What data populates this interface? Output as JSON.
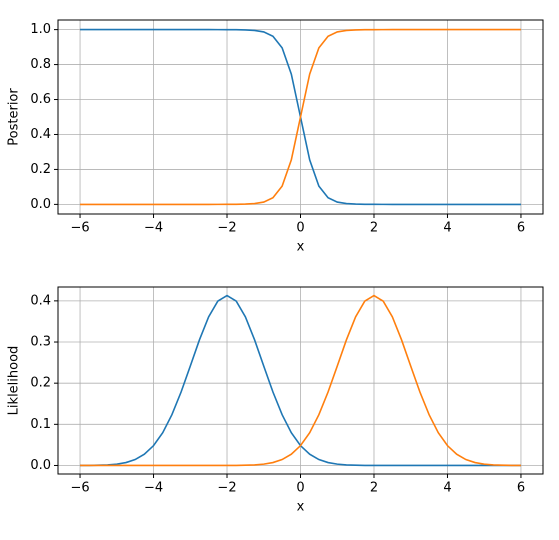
{
  "chart_data": [
    {
      "type": "line",
      "xlabel": "x",
      "ylabel": "Posterior",
      "x": [
        -6,
        -5.75,
        -5.5,
        -5.25,
        -5,
        -4.75,
        -4.5,
        -4.25,
        -4,
        -3.75,
        -3.5,
        -3.25,
        -3,
        -2.75,
        -2.5,
        -2.25,
        -2,
        -1.75,
        -1.5,
        -1.25,
        -1,
        -0.75,
        -0.5,
        -0.25,
        0,
        0.25,
        0.5,
        0.75,
        1,
        1.25,
        1.5,
        1.75,
        2,
        2.25,
        2.5,
        2.75,
        3,
        3.25,
        3.5,
        3.75,
        4,
        4.25,
        4.5,
        4.75,
        5,
        5.25,
        5.5,
        5.75,
        6
      ],
      "series": [
        {
          "color": "#1f77b4",
          "values": [
            1,
            1,
            1,
            1,
            1,
            1,
            1,
            1,
            1,
            1,
            1,
            1,
            1,
            1,
            1,
            0.9999,
            0.9998,
            0.9995,
            0.9984,
            0.9954,
            0.9866,
            0.9618,
            0.8957,
            0.7456,
            0.5,
            0.2544,
            0.1043,
            0.0382,
            0.0134,
            0.0046,
            0.0016,
            0.0005,
            0.0002,
            0.0001,
            0,
            0,
            0,
            0,
            0,
            0,
            0,
            0,
            0,
            0,
            0,
            0,
            0,
            0,
            0
          ]
        },
        {
          "color": "#ff7f0e",
          "values": [
            0,
            0,
            0,
            0,
            0,
            0,
            0,
            0,
            0,
            0,
            0,
            0,
            0,
            0,
            0,
            0.0001,
            0.0002,
            0.0005,
            0.0016,
            0.0046,
            0.0134,
            0.0382,
            0.1043,
            0.2544,
            0.5,
            0.7456,
            0.8957,
            0.9618,
            0.9866,
            0.9954,
            0.9984,
            0.9995,
            0.9998,
            0.9999,
            1,
            1,
            1,
            1,
            1,
            1,
            1,
            1,
            1,
            1,
            1,
            1,
            1,
            1,
            1
          ]
        }
      ],
      "xlim": [
        -6.6,
        6.6
      ],
      "xticks": [
        {
          "value": -6,
          "label": "−6"
        },
        {
          "value": -4,
          "label": "−4"
        },
        {
          "value": -2,
          "label": "−2"
        },
        0,
        2,
        4,
        6
      ],
      "ylim": [
        -0.055,
        1.055
      ],
      "yticks": [
        {
          "value": 0,
          "label": "0.0"
        },
        {
          "value": 0.2,
          "label": "0.2"
        },
        {
          "value": 0.4,
          "label": "0.4"
        },
        {
          "value": 0.6,
          "label": "0.6"
        },
        {
          "value": 0.8,
          "label": "0.8"
        },
        {
          "value": 1,
          "label": "1.0"
        }
      ],
      "grid": true
    },
    {
      "type": "line",
      "xlabel": "x",
      "ylabel": "Liklelihood",
      "x": [
        -6,
        -5.75,
        -5.5,
        -5.25,
        -5,
        -4.75,
        -4.5,
        -4.25,
        -4,
        -3.75,
        -3.5,
        -3.25,
        -3,
        -2.75,
        -2.5,
        -2.25,
        -2,
        -1.75,
        -1.5,
        -1.25,
        -1,
        -0.75,
        -0.5,
        -0.25,
        0,
        0.25,
        0.5,
        0.75,
        1,
        1.25,
        1.5,
        1.75,
        2,
        2.25,
        2.5,
        2.75,
        3,
        3.25,
        3.5,
        3.75,
        4,
        4.25,
        4.5,
        4.75,
        5,
        5.25,
        5.5,
        5.75,
        6
      ],
      "series": [
        {
          "color": "#1f77b4",
          "values": [
            0.0001,
            0.0002,
            0.0006,
            0.0014,
            0.0033,
            0.0071,
            0.0144,
            0.0273,
            0.0482,
            0.0797,
            0.1234,
            0.1785,
            0.2414,
            0.3053,
            0.3611,
            0.3994,
            0.413,
            0.3994,
            0.3611,
            0.3053,
            0.2414,
            0.1785,
            0.1234,
            0.0797,
            0.0482,
            0.0273,
            0.0144,
            0.0071,
            0.0033,
            0.0014,
            0.0006,
            0.0002,
            0.0001,
            0,
            0,
            0,
            0,
            0,
            0,
            0,
            0,
            0,
            0,
            0,
            0,
            0,
            0,
            0,
            0
          ]
        },
        {
          "color": "#ff7f0e",
          "values": [
            0,
            0,
            0,
            0,
            0,
            0,
            0,
            0,
            0,
            0,
            0,
            0,
            0,
            0,
            0,
            0,
            0.0001,
            0.0002,
            0.0006,
            0.0014,
            0.0033,
            0.0071,
            0.0144,
            0.0273,
            0.0482,
            0.0797,
            0.1234,
            0.1785,
            0.2414,
            0.3053,
            0.3611,
            0.3994,
            0.413,
            0.3994,
            0.3611,
            0.3053,
            0.2414,
            0.1785,
            0.1234,
            0.0797,
            0.0482,
            0.0273,
            0.0144,
            0.0071,
            0.0033,
            0.0014,
            0.0006,
            0.0002,
            0.0001
          ]
        }
      ],
      "xlim": [
        -6.6,
        6.6
      ],
      "xticks": [
        {
          "value": -6,
          "label": "−6"
        },
        {
          "value": -4,
          "label": "−4"
        },
        {
          "value": -2,
          "label": "−2"
        },
        0,
        2,
        4,
        6
      ],
      "ylim": [
        -0.0207,
        0.4337
      ],
      "yticks": [
        {
          "value": 0,
          "label": "0.0"
        },
        {
          "value": 0.1,
          "label": "0.1"
        },
        {
          "value": 0.2,
          "label": "0.2"
        },
        {
          "value": 0.3,
          "label": "0.3"
        },
        {
          "value": 0.4,
          "label": "0.4"
        }
      ],
      "grid": true
    }
  ]
}
